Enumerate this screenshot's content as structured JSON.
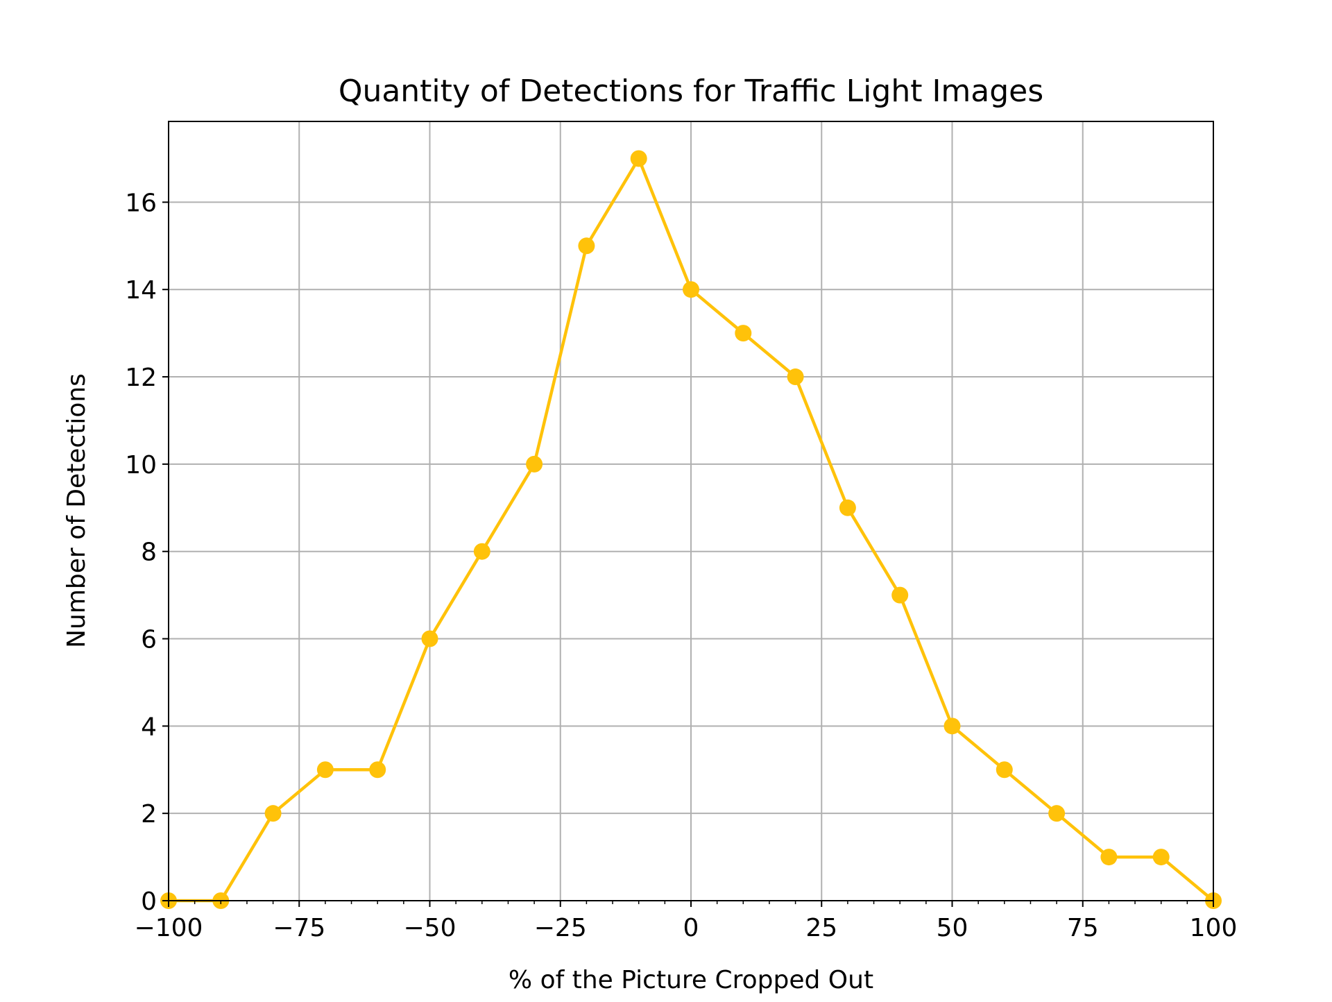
{
  "chart_data": {
    "type": "line",
    "title": "Quantity of Detections for Traffic Light Images",
    "xlabel": "% of the Picture Cropped Out",
    "ylabel": "Number of Detections",
    "xlim": [
      -100,
      100
    ],
    "ylim": [
      0,
      17.85
    ],
    "x_ticks": [
      -100,
      -75,
      -50,
      -25,
      0,
      25,
      50,
      75,
      100
    ],
    "x_tick_labels": [
      "−100",
      "−75",
      "−50",
      "−25",
      "0",
      "25",
      "50",
      "75",
      "100"
    ],
    "y_ticks": [
      0,
      2,
      4,
      6,
      8,
      10,
      12,
      14,
      16
    ],
    "y_tick_labels": [
      "0",
      "2",
      "4",
      "6",
      "8",
      "10",
      "12",
      "14",
      "16"
    ],
    "grid": true,
    "series": [
      {
        "color": "#FFC20A",
        "marker": "circle",
        "x": [
          -100,
          -90,
          -80,
          -70,
          -60,
          -50,
          -40,
          -30,
          -20,
          -10,
          0,
          10,
          20,
          30,
          40,
          50,
          60,
          70,
          80,
          90,
          100
        ],
        "y": [
          0,
          0,
          2,
          3,
          3,
          6,
          8,
          10,
          15,
          17,
          14,
          13,
          12,
          9,
          7,
          4,
          3,
          2,
          1,
          1,
          0
        ]
      }
    ]
  }
}
